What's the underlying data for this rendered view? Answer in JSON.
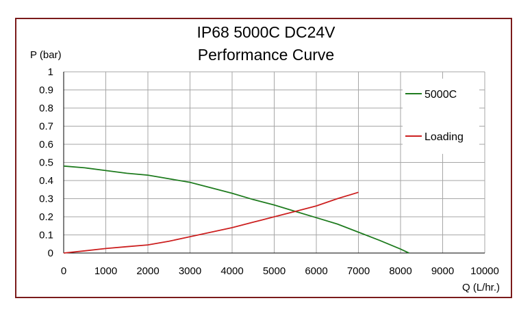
{
  "chart_data": {
    "type": "line",
    "title": "IP68  5000C  DC24V",
    "subtitle": "Performance Curve",
    "ylabel": "P (bar)",
    "xlabel": "Q (L/hr.)",
    "xlim": [
      0,
      10000
    ],
    "ylim": [
      0,
      1
    ],
    "xticks": [
      "0",
      "1000",
      "2000",
      "3000",
      "4000",
      "5000",
      "6000",
      "7000",
      "8000",
      "9000",
      "10000"
    ],
    "yticks": [
      "0",
      "0.1",
      "0.2",
      "0.3",
      "0.4",
      "0.5",
      "0.6",
      "0.7",
      "0.8",
      "0.9",
      "1"
    ],
    "grid": true,
    "legend_position": "right",
    "series": [
      {
        "name": "5000C",
        "color": "#1e7b1e",
        "x": [
          0,
          500,
          1000,
          1500,
          2000,
          2500,
          3000,
          3500,
          4000,
          4500,
          5000,
          5500,
          6000,
          6500,
          7000,
          7500,
          8000,
          8200
        ],
        "y": [
          0.48,
          0.47,
          0.455,
          0.44,
          0.43,
          0.41,
          0.39,
          0.36,
          0.33,
          0.295,
          0.265,
          0.23,
          0.195,
          0.16,
          0.115,
          0.07,
          0.022,
          0.0
        ]
      },
      {
        "name": "Loading",
        "color": "#cc1f1f",
        "x": [
          0,
          500,
          1000,
          1500,
          2000,
          2500,
          3000,
          3500,
          4000,
          4500,
          5000,
          5500,
          6000,
          6500,
          7000
        ],
        "y": [
          0.0,
          0.012,
          0.025,
          0.035,
          0.045,
          0.065,
          0.09,
          0.115,
          0.14,
          0.17,
          0.2,
          0.23,
          0.26,
          0.3,
          0.335
        ]
      }
    ]
  }
}
